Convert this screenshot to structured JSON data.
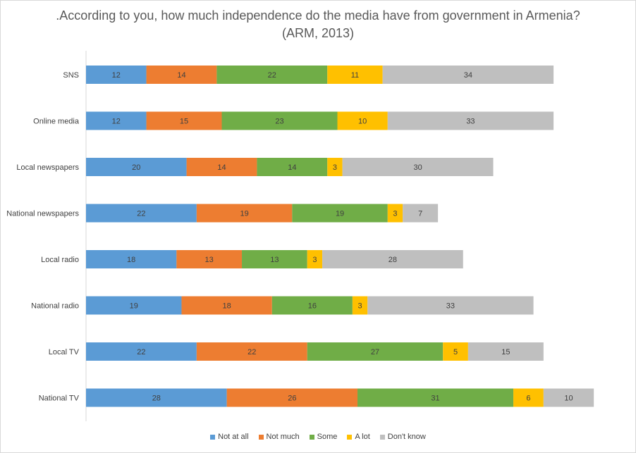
{
  "chart_data": {
    "type": "bar",
    "orientation": "horizontal",
    "stacked": true,
    "title": ".According to you, how much independence do the media have from government in Armenia?",
    "subtitle": "(ARM, 2013)",
    "categories": [
      "SNS",
      "Online media",
      "Local newspapers",
      "National newspapers",
      "Local radio",
      "National radio",
      "Local TV",
      "National TV"
    ],
    "series": [
      {
        "name": "Not at all",
        "color": "#5b9bd5",
        "values": [
          12,
          12,
          20,
          22,
          18,
          19,
          22,
          28
        ]
      },
      {
        "name": "Not much",
        "color": "#ed7d31",
        "values": [
          14,
          15,
          14,
          19,
          13,
          18,
          22,
          26
        ]
      },
      {
        "name": "Some",
        "color": "#70ad47",
        "values": [
          22,
          23,
          14,
          19,
          13,
          16,
          27,
          31
        ]
      },
      {
        "name": "A lot",
        "color": "#ffc000",
        "values": [
          11,
          10,
          3,
          3,
          3,
          3,
          5,
          6
        ]
      },
      {
        "name": "Don't know",
        "color": "#bfbfbf",
        "values": [
          34,
          33,
          30,
          7,
          28,
          33,
          15,
          10
        ]
      }
    ],
    "legend_position": "bottom",
    "grid": false
  }
}
